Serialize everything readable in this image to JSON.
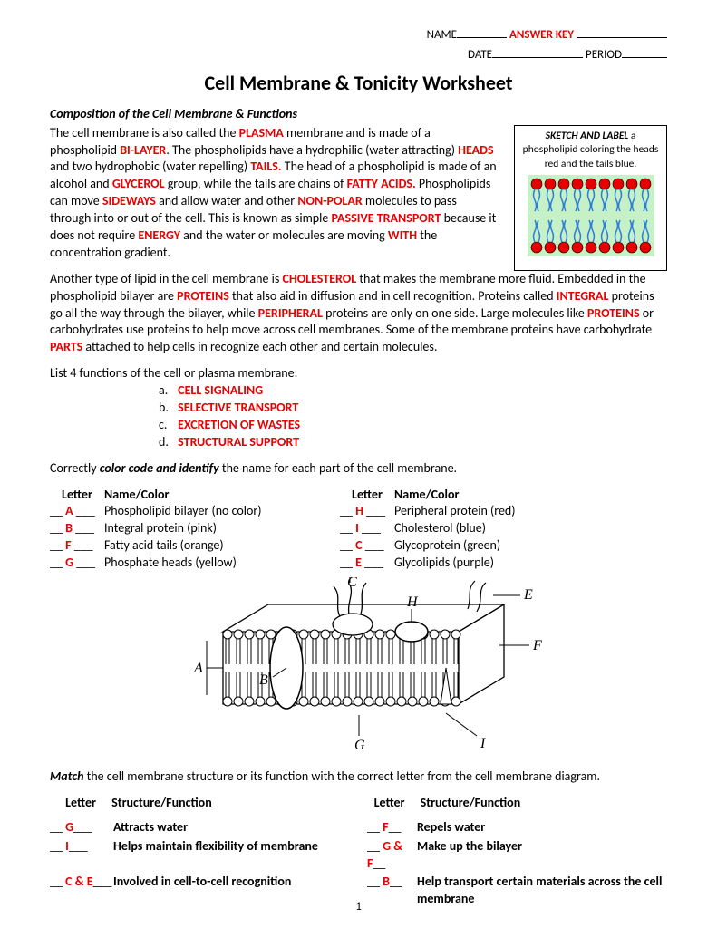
{
  "header": {
    "name_label": "NAME",
    "answer_key": "ANSWER KEY",
    "date_label": "DATE",
    "period_label": "PERIOD"
  },
  "title": "Cell Membrane & Tonicity Worksheet",
  "section1_heading": "Composition of the Cell Membrane & Functions",
  "para1": {
    "t1": "The cell membrane is also called the ",
    "k1": "PLASMA",
    "t2": " membrane and is made of a phospholipid ",
    "k2": "BI-LAYER",
    "t3": ".  The phospholipids have a hydrophilic (water attracting) ",
    "k3": "HEADS",
    "t4": " and two hydrophobic (water repelling) ",
    "k4": "TAILS.",
    "t5": " The head of a phospholipid is made of an alcohol and ",
    "k5": "GLYCEROL",
    "t6": "  group, while the tails are chains of ",
    "k6": "FATTY ACIDS.",
    "t7": "  Phospholipids can move ",
    "k7": "SIDEWAYS",
    "t8": " and allow water and other ",
    "k8": "NON-POLAR",
    "t9": " molecules to pass through into or out of the cell.  This is known as simple ",
    "k9": "PASSIVE TRANSPORT",
    "t10": " because it does not require ",
    "k10": "ENERGY",
    "t11": " and the water or molecules are moving ",
    "k11": "WITH",
    "t12": " the concentration gradient."
  },
  "sketch_box": {
    "t1": "SKETCH AND LABEL",
    "t2": " a phospholipid coloring the heads red and the tails blue.",
    "head_color": "#e60000",
    "tail_color": "#2e7ed8",
    "bg_color": "#c6f0c6"
  },
  "para2": {
    "t1": "Another type of lipid in the cell membrane is ",
    "k1": "CHOLESTEROL",
    "t2": " that makes the membrane more fluid.  Embedded in the phospholipid bilayer are ",
    "k2": "PROTEINS",
    "t3": " that also aid in diffusion and in cell recognition.  Proteins called ",
    "k3": "INTEGRAL",
    "t4": " proteins go all the way through the bilayer, while ",
    "k4": "PERIPHERAL",
    "t5": " proteins are only on one side.  Large molecules like ",
    "k5": "PROTEINS",
    "t6": " or carbohydrates use proteins to help move across cell membranes.  Some of the membrane proteins have carbohydrate ",
    "k6": "PARTS",
    "t7": " attached to help cells in recognize each other and certain molecules."
  },
  "func_intro": "List 4 functions of the cell or plasma membrane:",
  "functions": [
    {
      "l": "a.",
      "txt": "CELL SIGNALING"
    },
    {
      "l": "b.",
      "txt": "SELECTIVE TRANSPORT"
    },
    {
      "l": "c.",
      "txt": "EXCRETION OF WASTES"
    },
    {
      "l": "d.",
      "txt": "STRUCTURAL SUPPORT"
    }
  ],
  "colorcode_intro": {
    "t1": "Correctly ",
    "bi": "color code and identify",
    "t2": " the name for each part of the cell membrane."
  },
  "cc_headers": {
    "letter": "Letter",
    "namecolor": "Name/Color"
  },
  "cc_left": [
    {
      "ans": "A",
      "name": "Phospholipid bilayer (no color)"
    },
    {
      "ans": "B",
      "name": "Integral protein (pink)"
    },
    {
      "ans": "F",
      "name": "Fatty acid tails (orange)"
    },
    {
      "ans": "G",
      "name": "Phosphate heads (yellow)"
    }
  ],
  "cc_right": [
    {
      "ans": "H",
      "name": "Peripheral protein (red)"
    },
    {
      "ans": "I",
      "name": "Cholesterol (blue)"
    },
    {
      "ans": "C",
      "name": "Glycoprotein (green)"
    },
    {
      "ans": "E",
      "name": "Glycolipids (purple)"
    }
  ],
  "diagram_labels": [
    "A",
    "B",
    "C",
    "E",
    "F",
    "G",
    "H",
    "I"
  ],
  "match_intro": {
    "b": "Match",
    "t": " the cell membrane structure or its function with the correct letter from the cell membrane diagram."
  },
  "match_headers": {
    "letter": "Letter",
    "sf": "Structure/Function"
  },
  "match_left": [
    {
      "ans": "G",
      "txt": "Attracts water"
    },
    {
      "ans": "I",
      "txt": "Helps maintain flexibility of membrane"
    },
    {
      "ans": "C & E",
      "txt": "Involved in cell-to-cell recognition"
    }
  ],
  "match_right": [
    {
      "ans": "F",
      "txt": "Repels water"
    },
    {
      "ans": "G & F",
      "txt": "Make up the bilayer"
    },
    {
      "ans": "B",
      "txt": "Help transport certain materials across the cell membrane"
    }
  ],
  "page_num": "1"
}
